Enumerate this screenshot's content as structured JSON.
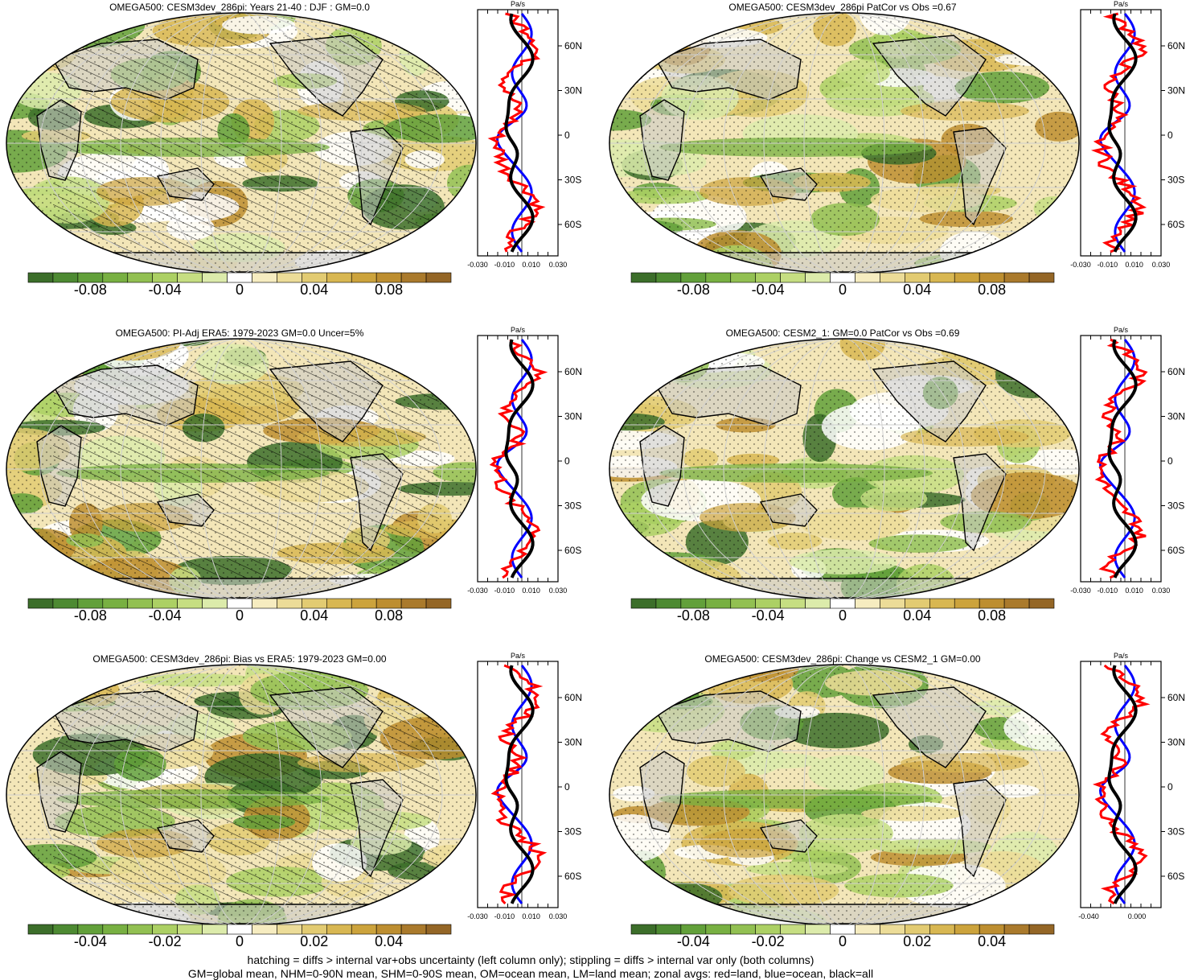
{
  "panels": [
    {
      "title": "OMEGA500: CESM3dev_286pi: Years 21-40 : DJF : GM=0.0",
      "colorbar_labels": [
        "-0.08",
        "-0.04",
        "0",
        "0.04",
        "0.08"
      ],
      "zonal_unit": "Pa/s",
      "zonal_ticks": [
        "-0.030",
        "-0.010",
        "0.010",
        "0.030"
      ],
      "lat_labels": [
        "60N",
        "30N",
        "0",
        "30S",
        "60S"
      ],
      "hatching": true
    },
    {
      "title": "OMEGA500: CESM3dev_286pi PatCor vs Obs =0.67",
      "colorbar_labels": [
        "-0.08",
        "-0.04",
        "0",
        "0.04",
        "0.08"
      ],
      "zonal_unit": "Pa/s",
      "zonal_ticks": [
        "-0.030",
        "-0.010",
        "0.010",
        "0.030"
      ],
      "lat_labels": [
        "60N",
        "30N",
        "0",
        "30S",
        "60S"
      ],
      "hatching": false
    },
    {
      "title": "OMEGA500: PI-Adj ERA5: 1979-2023 GM=0.0 Uncer=5%",
      "colorbar_labels": [
        "-0.08",
        "-0.04",
        "0",
        "0.04",
        "0.08"
      ],
      "zonal_unit": "Pa/s",
      "zonal_ticks": [
        "-0.030",
        "-0.010",
        "0.010",
        "0.030"
      ],
      "lat_labels": [
        "60N",
        "30N",
        "0",
        "30S",
        "60S"
      ],
      "hatching": true
    },
    {
      "title": "OMEGA500: CESM2_1: GM=0.0 PatCor vs Obs =0.69",
      "colorbar_labels": [
        "-0.08",
        "-0.04",
        "0",
        "0.04",
        "0.08"
      ],
      "zonal_unit": "Pa/s",
      "zonal_ticks": [
        "-0.030",
        "-0.010",
        "0.010",
        "0.030"
      ],
      "lat_labels": [
        "60N",
        "30N",
        "0",
        "30S",
        "60S"
      ],
      "hatching": false
    },
    {
      "title": "OMEGA500: CESM3dev_286pi: Bias vs ERA5: 1979-2023 GM=0.00",
      "colorbar_labels": [
        "-0.04",
        "-0.02",
        "0",
        "0.02",
        "0.04"
      ],
      "zonal_unit": "Pa/s",
      "zonal_ticks": [
        "-0.030",
        "-0.010",
        "0.010",
        "0.030"
      ],
      "lat_labels": [
        "60N",
        "30N",
        "0",
        "30S",
        "60S"
      ],
      "hatching": true
    },
    {
      "title": "OMEGA500: CESM3dev_286pi: Change vs CESM2_1 GM=0.00",
      "colorbar_labels": [
        "-0.04",
        "-0.02",
        "0",
        "0.02",
        "0.04"
      ],
      "zonal_unit": "Pa/s",
      "zonal_ticks": [
        "-0.040",
        "0.000"
      ],
      "lat_labels": [
        "60N",
        "30N",
        "0",
        "30S",
        "60S"
      ],
      "hatching": false
    }
  ],
  "colorbar_colors": [
    "#3c6e2a",
    "#4d8a32",
    "#62a03a",
    "#78b042",
    "#92c052",
    "#acd064",
    "#c6de82",
    "#dcebab",
    "#ffffff",
    "#f6ecc0",
    "#ecdc98",
    "#e2cb72",
    "#d8b752",
    "#cca33c",
    "#bd8e30",
    "#aa7a2c",
    "#946626"
  ],
  "zonal_colors": {
    "land": "#ff0000",
    "ocean": "#0000ff",
    "all": "#000000"
  },
  "footer": {
    "line1": "hatching = diffs > internal var+obs uncertainty (left column only); stippling = diffs > internal var only (both columns)",
    "line2": "GM=global mean, NHM=0-90N mean, SHM=0-90S mean, OM=ocean mean, LM=land mean; zonal avgs: red=land, blue=ocean, black=all"
  },
  "chart_data": [
    {
      "type": "heatmap",
      "title": "OMEGA500: CESM3dev_286pi: Years 21-40 : DJF : GM=0.0",
      "colorbar_range": [
        -0.1,
        0.1
      ]
    },
    {
      "type": "heatmap",
      "title": "OMEGA500: CESM3dev_286pi PatCor vs Obs =0.67",
      "colorbar_range": [
        -0.1,
        0.1
      ]
    },
    {
      "type": "heatmap",
      "title": "OMEGA500: PI-Adj ERA5: 1979-2023 GM=0.0 Uncer=5%",
      "colorbar_range": [
        -0.1,
        0.1
      ]
    },
    {
      "type": "heatmap",
      "title": "OMEGA500: CESM2_1: GM=0.0 PatCor vs Obs =0.69",
      "colorbar_range": [
        -0.1,
        0.1
      ]
    },
    {
      "type": "heatmap",
      "title": "OMEGA500: CESM3dev_286pi: Bias vs ERA5: 1979-2023 GM=0.00",
      "colorbar_range": [
        -0.05,
        0.05
      ]
    },
    {
      "type": "heatmap",
      "title": "OMEGA500: CESM3dev_286pi: Change vs CESM2_1 GM=0.00",
      "colorbar_range": [
        -0.05,
        0.05
      ]
    }
  ]
}
